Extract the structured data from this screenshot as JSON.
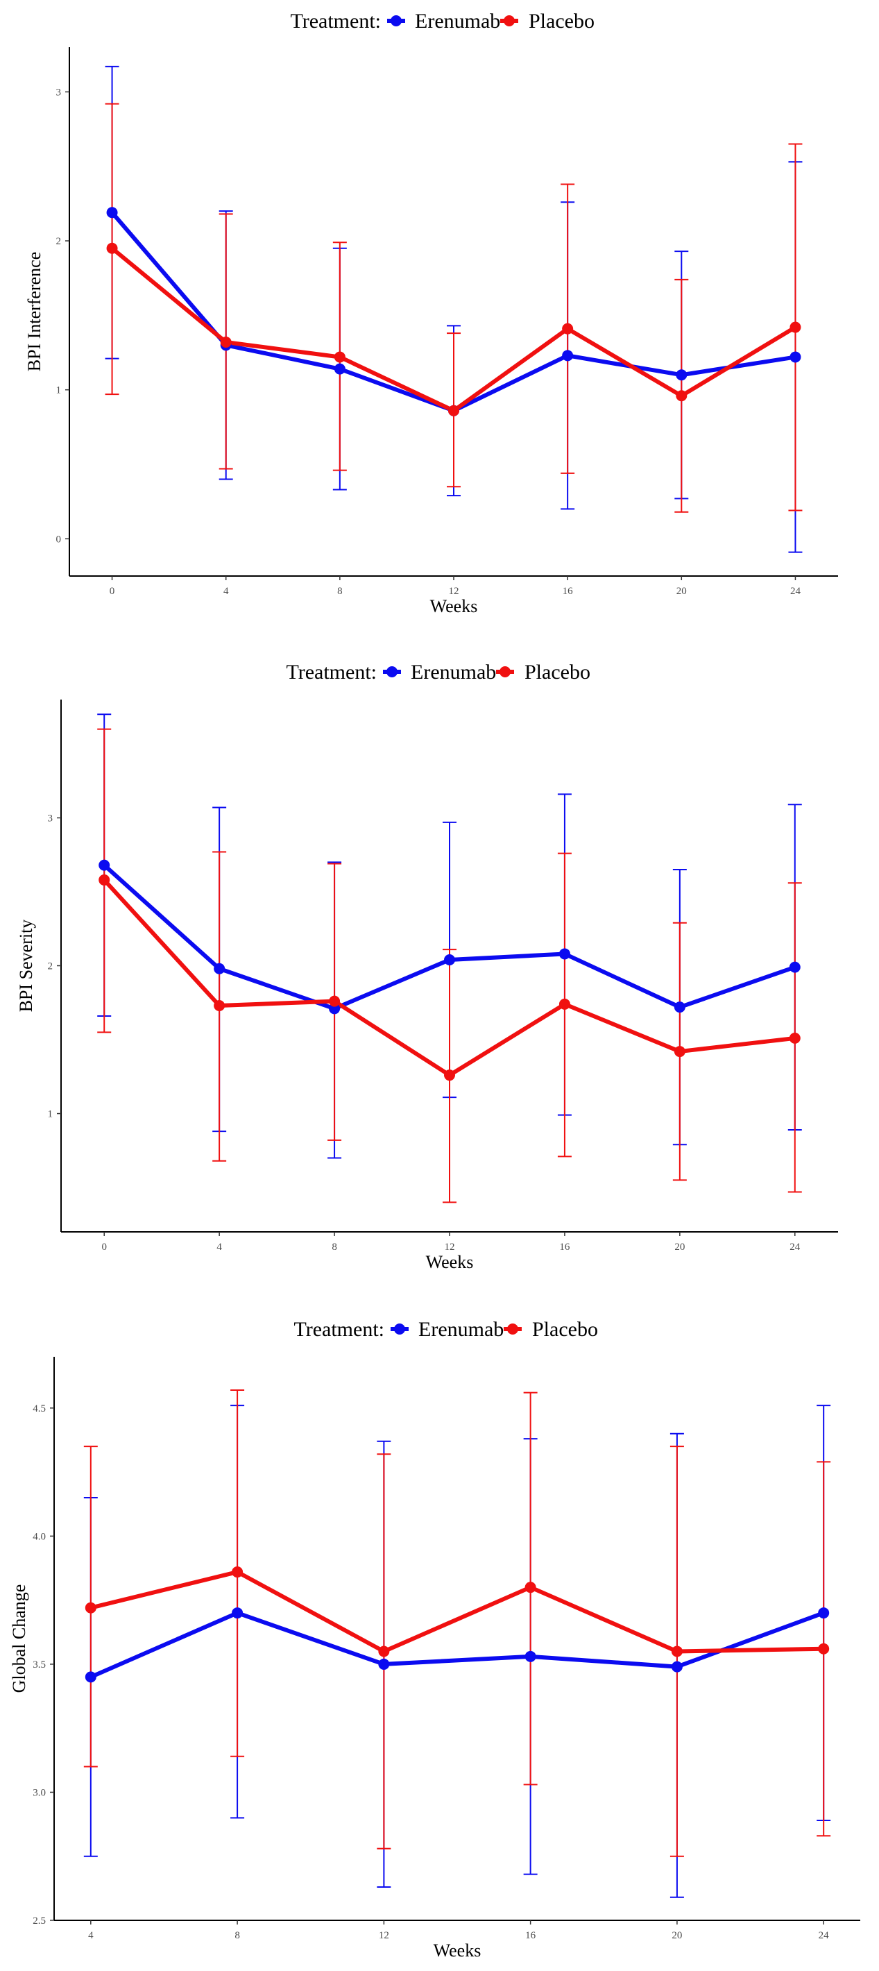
{
  "colors": {
    "Erenumab": "#0b0bf0",
    "Placebo": "#f01010",
    "axis": "#000000",
    "background": "#ffffff"
  },
  "legend": {
    "title": "Treatment:",
    "position": "top-center"
  },
  "chart_data": [
    {
      "type": "line",
      "xlabel": "Weeks",
      "ylabel": "BPI Interference",
      "x": [
        0,
        4,
        8,
        12,
        16,
        20,
        24
      ],
      "xlim": [
        -1.5,
        25.5
      ],
      "ylim": [
        -0.25,
        3.3
      ],
      "yticks": [
        0,
        1,
        2,
        3
      ],
      "grid": false,
      "error_bars": true,
      "series": [
        {
          "name": "Erenumab",
          "values": [
            2.19,
            1.3,
            1.14,
            0.86,
            1.23,
            1.1,
            1.22
          ],
          "lower": [
            1.21,
            0.4,
            0.33,
            0.29,
            0.2,
            0.27,
            -0.09
          ],
          "upper": [
            3.17,
            2.2,
            1.95,
            1.43,
            2.26,
            1.93,
            2.53
          ]
        },
        {
          "name": "Placebo",
          "values": [
            1.95,
            1.32,
            1.22,
            0.86,
            1.41,
            0.96,
            1.42
          ],
          "lower": [
            0.97,
            0.47,
            0.46,
            0.35,
            0.44,
            0.18,
            0.19
          ],
          "upper": [
            2.92,
            2.18,
            1.99,
            1.38,
            2.38,
            1.74,
            2.65
          ]
        }
      ]
    },
    {
      "type": "line",
      "xlabel": "Weeks",
      "ylabel": "BPI Severity",
      "x": [
        0,
        4,
        8,
        12,
        16,
        20,
        24
      ],
      "xlim": [
        -1.5,
        25.5
      ],
      "ylim": [
        0.2,
        3.8
      ],
      "yticks": [
        1,
        2,
        3
      ],
      "grid": false,
      "error_bars": true,
      "series": [
        {
          "name": "Erenumab",
          "values": [
            2.68,
            1.98,
            1.71,
            2.04,
            2.08,
            1.72,
            1.99
          ],
          "lower": [
            1.66,
            0.88,
            0.7,
            1.11,
            0.99,
            0.79,
            0.89
          ],
          "upper": [
            3.7,
            3.07,
            2.7,
            2.97,
            3.16,
            2.65,
            3.09
          ]
        },
        {
          "name": "Placebo",
          "values": [
            2.58,
            1.73,
            1.76,
            1.26,
            1.74,
            1.42,
            1.51
          ],
          "lower": [
            1.55,
            0.68,
            0.82,
            0.4,
            0.71,
            0.55,
            0.47
          ],
          "upper": [
            3.6,
            2.77,
            2.69,
            2.11,
            2.76,
            2.29,
            2.56
          ]
        }
      ]
    },
    {
      "type": "line",
      "xlabel": "Weeks",
      "ylabel": "Global Change",
      "x": [
        4,
        8,
        12,
        16,
        20,
        24
      ],
      "xlim": [
        3,
        25
      ],
      "ylim": [
        2.5,
        4.7
      ],
      "yticks": [
        2.5,
        3.0,
        3.5,
        4.0,
        4.5
      ],
      "ytick_labels": [
        "2.5",
        "3.0",
        "3.5",
        "4.0",
        "4.5"
      ],
      "grid": false,
      "error_bars": true,
      "series": [
        {
          "name": "Erenumab",
          "values": [
            3.45,
            3.7,
            3.5,
            3.53,
            3.49,
            3.7
          ],
          "lower": [
            2.75,
            2.9,
            2.63,
            2.68,
            2.59,
            2.89
          ],
          "upper": [
            4.15,
            4.51,
            4.37,
            4.38,
            4.4,
            4.51
          ]
        },
        {
          "name": "Placebo",
          "values": [
            3.72,
            3.86,
            3.55,
            3.8,
            3.55,
            3.56
          ],
          "lower": [
            3.1,
            3.14,
            2.78,
            3.03,
            2.75,
            2.83
          ],
          "upper": [
            4.35,
            4.57,
            4.32,
            4.56,
            4.35,
            4.29
          ]
        }
      ]
    }
  ]
}
